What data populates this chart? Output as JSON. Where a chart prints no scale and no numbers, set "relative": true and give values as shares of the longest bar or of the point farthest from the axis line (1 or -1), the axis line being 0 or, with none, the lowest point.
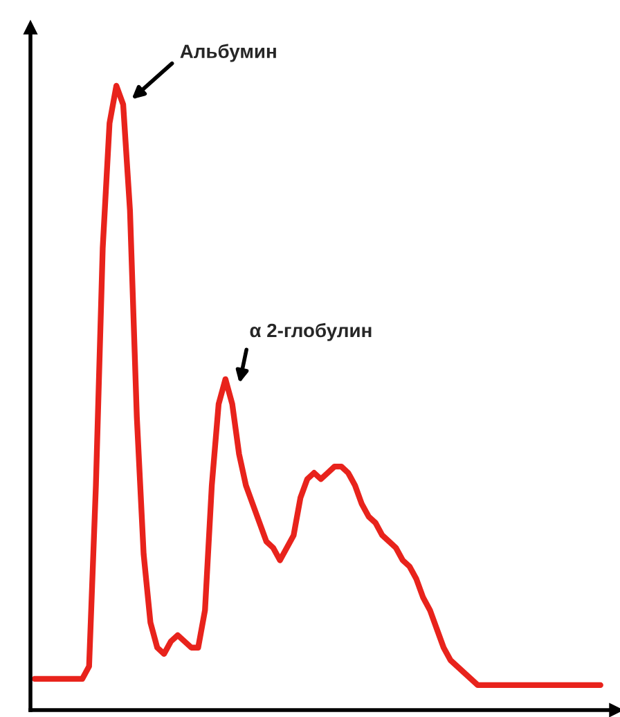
{
  "chart_data": {
    "type": "line",
    "relative": true,
    "color": "#e8231c",
    "categories": [
      null,
      null,
      null,
      null,
      null,
      null,
      null,
      null,
      null,
      null,
      null,
      null,
      null,
      null,
      null,
      null,
      null,
      null,
      null,
      null,
      null,
      null,
      null,
      null,
      null,
      null,
      null,
      null,
      null,
      null,
      null,
      null,
      null,
      null,
      null,
      null,
      null,
      null,
      null,
      null,
      null,
      null,
      null,
      null,
      null,
      null,
      null,
      null,
      null,
      null,
      null,
      null,
      null,
      null,
      null,
      null,
      null,
      null,
      null,
      null,
      null,
      null,
      null,
      null,
      null,
      null,
      null,
      null,
      null,
      null,
      null,
      null,
      null,
      null,
      null,
      null,
      null,
      null,
      null,
      null,
      null,
      null,
      null,
      null
    ],
    "values": [
      0.05,
      0.05,
      0.05,
      0.05,
      0.05,
      0.05,
      0.05,
      0.05,
      0.07,
      0.36,
      0.74,
      0.94,
      1,
      0.97,
      0.8,
      0.47,
      0.25,
      0.14,
      0.1,
      0.09,
      0.11,
      0.12,
      0.11,
      0.1,
      0.1,
      0.16,
      0.36,
      0.49,
      0.53,
      0.49,
      0.41,
      0.36,
      0.33,
      0.3,
      0.27,
      0.26,
      0.24,
      0.26,
      0.28,
      0.34,
      0.37,
      0.38,
      0.37,
      0.38,
      0.39,
      0.39,
      0.38,
      0.36,
      0.33,
      0.31,
      0.3,
      0.28,
      0.27,
      0.26,
      0.24,
      0.23,
      0.21,
      0.18,
      0.16,
      0.13,
      0.1,
      0.08,
      0.07,
      0.06,
      0.05,
      0.04,
      0.04,
      0.04,
      0.04,
      0.04,
      0.04,
      0.04,
      0.04,
      0.04,
      0.04,
      0.04,
      0.04,
      0.04,
      0.04,
      0.04,
      0.04,
      0.04,
      0.04,
      0.04
    ],
    "annotations": [
      "Альбумин",
      "α 2-глобулин"
    ],
    "grid": false,
    "legend": false,
    "marker": "none",
    "line_style": "solid"
  }
}
